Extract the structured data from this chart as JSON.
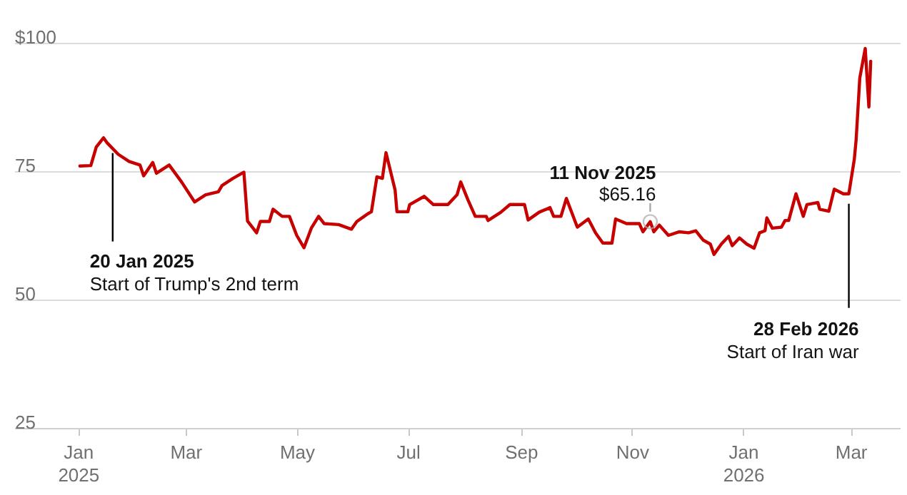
{
  "chart_data": {
    "type": "line",
    "x": [
      "2025-01-02",
      "2025-01-08",
      "2025-01-11",
      "2025-01-15",
      "2025-01-17",
      "2025-01-23",
      "2025-01-29",
      "2025-02-04",
      "2025-02-06",
      "2025-02-11",
      "2025-02-13",
      "2025-02-20",
      "2025-02-27",
      "2025-03-06",
      "2025-03-12",
      "2025-03-19",
      "2025-03-21",
      "2025-03-27",
      "2025-04-02",
      "2025-04-04",
      "2025-04-09",
      "2025-04-11",
      "2025-04-16",
      "2025-04-18",
      "2025-04-23",
      "2025-04-27",
      "2025-05-01",
      "2025-05-05",
      "2025-05-09",
      "2025-05-13",
      "2025-05-16",
      "2025-05-24",
      "2025-05-31",
      "2025-06-03",
      "2025-06-09",
      "2025-06-11",
      "2025-06-14",
      "2025-06-17",
      "2025-06-19",
      "2025-06-24",
      "2025-06-25",
      "2025-07-01",
      "2025-07-02",
      "2025-07-10",
      "2025-07-15",
      "2025-07-23",
      "2025-07-28",
      "2025-07-30",
      "2025-08-03",
      "2025-08-07",
      "2025-08-13",
      "2025-08-14",
      "2025-08-21",
      "2025-08-26",
      "2025-09-03",
      "2025-09-05",
      "2025-09-11",
      "2025-09-17",
      "2025-09-19",
      "2025-09-23",
      "2025-09-26",
      "2025-10-02",
      "2025-10-08",
      "2025-10-12",
      "2025-10-16",
      "2025-10-21",
      "2025-10-23",
      "2025-10-29",
      "2025-11-05",
      "2025-11-07",
      "2025-11-11",
      "2025-11-13",
      "2025-11-16",
      "2025-11-21",
      "2025-11-27",
      "2025-12-02",
      "2025-12-06",
      "2025-12-10",
      "2025-12-14",
      "2025-12-16",
      "2025-12-20",
      "2025-12-24",
      "2025-12-26",
      "2025-12-30",
      "2026-01-03",
      "2026-01-07",
      "2026-01-10",
      "2026-01-13",
      "2026-01-14",
      "2026-01-17",
      "2026-01-22",
      "2026-01-24",
      "2026-01-26",
      "2026-01-30",
      "2026-02-03",
      "2026-02-05",
      "2026-02-11",
      "2026-02-12",
      "2026-02-17",
      "2026-02-20",
      "2026-02-25",
      "2026-02-28",
      "2026-03-03",
      "2026-03-04",
      "2026-03-06",
      "2026-03-09",
      "2026-03-11",
      "2026-03-12"
    ],
    "series": [
      {
        "color": "#c70000",
        "values": [
          76.0,
          76.1,
          79.7,
          81.5,
          80.5,
          78.3,
          76.9,
          76.2,
          74.1,
          76.7,
          74.6,
          76.2,
          72.8,
          69.0,
          70.4,
          71.0,
          72.2,
          73.6,
          74.8,
          65.3,
          63.0,
          65.2,
          65.2,
          67.6,
          66.2,
          66.2,
          62.5,
          60.1,
          63.9,
          66.2,
          64.8,
          64.6,
          63.7,
          65.2,
          66.7,
          67.1,
          73.9,
          73.6,
          78.6,
          71.3,
          67.1,
          67.1,
          68.5,
          70.1,
          68.5,
          68.5,
          70.4,
          72.9,
          69.4,
          66.2,
          66.2,
          65.4,
          67.0,
          68.5,
          68.5,
          65.5,
          67.0,
          67.9,
          66.2,
          66.2,
          69.7,
          64.1,
          65.7,
          63.0,
          61.0,
          61.0,
          65.7,
          64.8,
          64.8,
          63.2,
          65.16,
          63.2,
          64.5,
          62.5,
          63.2,
          63.0,
          63.4,
          61.6,
          60.8,
          58.8,
          60.8,
          62.3,
          60.5,
          62.0,
          60.8,
          60.0,
          63.0,
          63.4,
          65.9,
          63.9,
          64.1,
          65.4,
          65.4,
          70.6,
          66.2,
          68.5,
          68.9,
          67.6,
          67.2,
          71.5,
          70.6,
          70.6,
          77.3,
          81.1,
          93.1,
          98.9,
          87.5,
          96.4
        ]
      }
    ],
    "xlim": [
      "2024-11-27",
      "2026-03-28"
    ],
    "xticks": [
      {
        "value": "2025-01-01",
        "label": "Jan 2025"
      },
      {
        "value": "2025-03-01",
        "label": "Mar"
      },
      {
        "value": "2025-05-01",
        "label": "May"
      },
      {
        "value": "2025-07-01",
        "label": "Jul"
      },
      {
        "value": "2025-09-01",
        "label": "Sep"
      },
      {
        "value": "2025-11-01",
        "label": "Nov"
      },
      {
        "value": "2026-01-01",
        "label": "Jan 2026"
      },
      {
        "value": "2026-03-01",
        "label": "Mar"
      }
    ],
    "ylim": [
      25,
      100
    ],
    "yticks": [
      25,
      50,
      75,
      {
        "value": 100,
        "label": "$100"
      }
    ],
    "grid": "y",
    "annotations": [
      {
        "text": "20 Jan 2025\nStart of Trump's 2nd term",
        "x": "2025-01-20",
        "y": 80.2
      },
      {
        "text": "11 Nov 2025\n$65.16",
        "x": "2025-11-11",
        "y": 65.16
      },
      {
        "text": "28 Feb 2026\nStart of Iran war",
        "x": "2026-02-28",
        "y": 70.6
      }
    ]
  }
}
